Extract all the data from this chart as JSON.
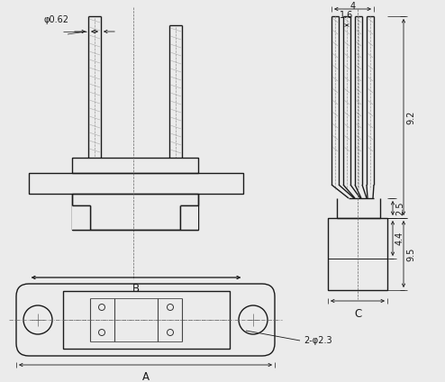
{
  "bg_color": "#ebebeb",
  "line_color": "#1a1a1a",
  "dim_color": "#1a1a1a",
  "centerline_color": "#666666",
  "annotations": {
    "phi_0_62": "φ0.62",
    "phi_2_3": "2-φ2.3",
    "dim_4": "4",
    "dim_1_6": "1.6",
    "dim_9_2": "9.2",
    "dim_2_5": "2.5",
    "dim_4_4": "4.4",
    "dim_9_5": "9.5",
    "label_A": "A",
    "label_B": "B",
    "label_C": "C"
  },
  "fontsize_dim": 7,
  "fontsize_label": 8.5
}
